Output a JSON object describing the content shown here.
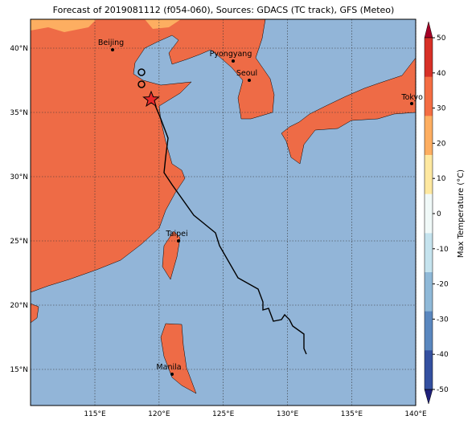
{
  "title": "Forecast of 2019081112 (f054-060), Sources: GDACS (TC track), GFS (Meteo)",
  "map": {
    "lon_labels": [
      "115°E",
      "120°E",
      "125°E",
      "130°E",
      "135°E",
      "140°E"
    ],
    "lat_labels": [
      "40°N",
      "35°N",
      "30°N",
      "25°N",
      "20°N",
      "15°N"
    ],
    "cities": [
      "Beijing",
      "Pyongyang",
      "Seoul",
      "Tokyo",
      "Taipei",
      "Manila"
    ]
  },
  "colorbar": {
    "label": "Max Temperature (°C)",
    "ticks": [
      50,
      40,
      30,
      20,
      10,
      0,
      -10,
      -20,
      -30,
      -40,
      -50
    ],
    "colors": [
      "#a50026",
      "#d73027",
      "#f46d43",
      "#fdae61",
      "#fee8a0",
      "#f0f9f8",
      "#c5e3ee",
      "#8fb9d8",
      "#5a87bf",
      "#3450a0",
      "#1f207a"
    ]
  }
}
